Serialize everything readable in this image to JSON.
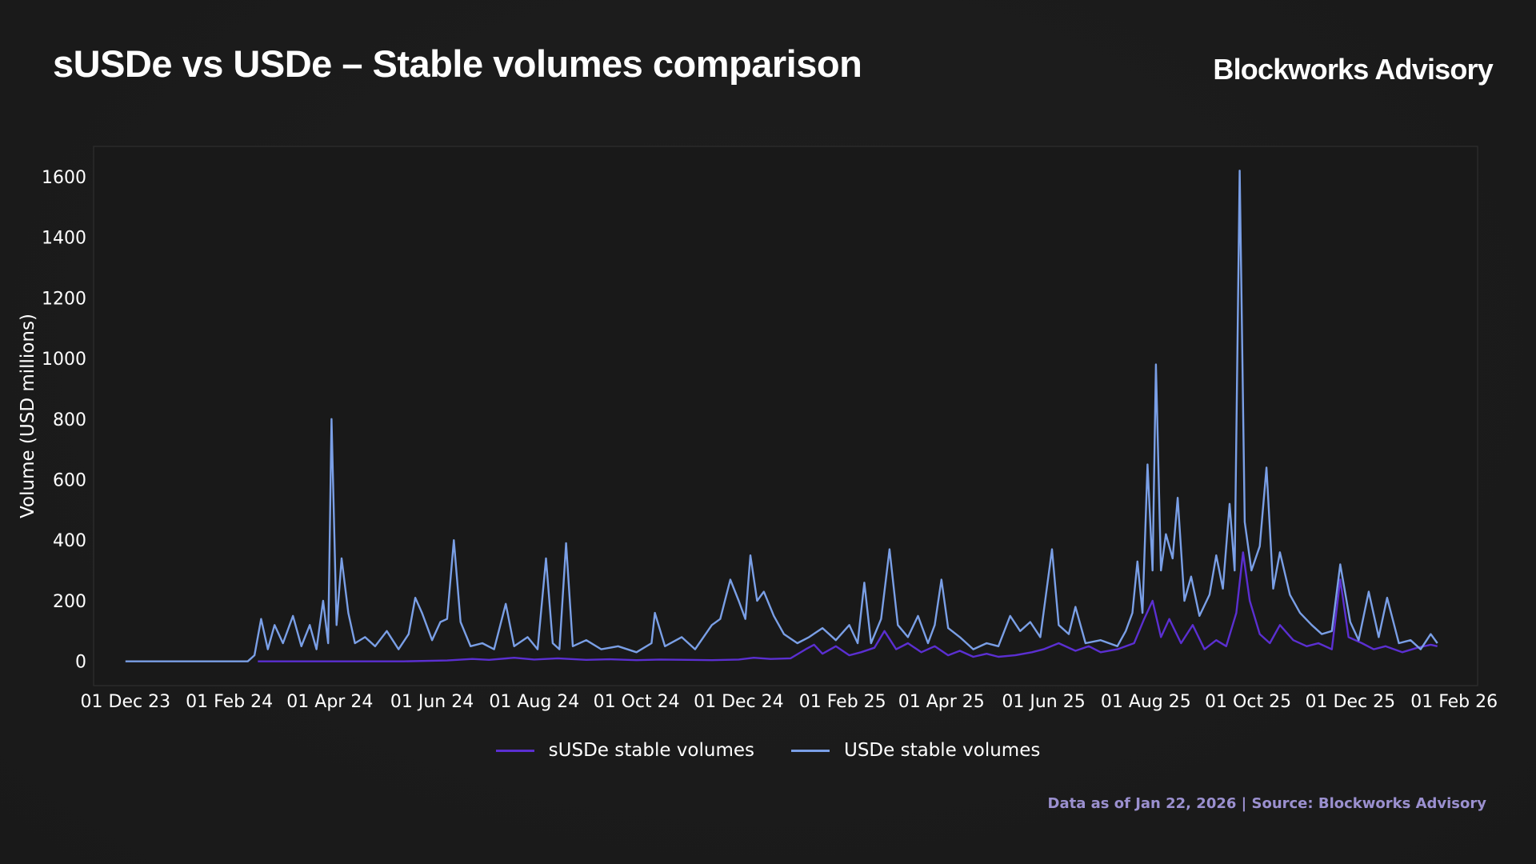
{
  "header": {
    "title": "sUSDe vs USDe – Stable volumes comparison",
    "brand": "Blockworks Advisory"
  },
  "footer": {
    "source_note": "Data as of Jan 22, 2026 | Source: Blockworks Advisory"
  },
  "colors": {
    "background": "#1b1b1b",
    "plot_background": "#191919",
    "susde": "#5b2fd1",
    "usde": "#7a9fe6",
    "source_note": "#9b90cf"
  },
  "chart_data": {
    "type": "line",
    "title": "sUSDe vs USDe – Stable volumes comparison",
    "xlabel": "",
    "ylabel": "Volume (USD millions)",
    "x_type": "date",
    "xlim": [
      "2023-11-12",
      "2026-02-15"
    ],
    "ylim": [
      -80,
      1700
    ],
    "x_ticks": [
      {
        "date": "2023-12-01",
        "label": "01 Dec 23"
      },
      {
        "date": "2024-02-01",
        "label": "01 Feb 24"
      },
      {
        "date": "2024-04-01",
        "label": "01 Apr 24"
      },
      {
        "date": "2024-06-01",
        "label": "01 Jun 24"
      },
      {
        "date": "2024-08-01",
        "label": "01 Aug 24"
      },
      {
        "date": "2024-10-01",
        "label": "01 Oct 24"
      },
      {
        "date": "2024-12-01",
        "label": "01 Dec 24"
      },
      {
        "date": "2025-02-01",
        "label": "01 Feb 25"
      },
      {
        "date": "2025-04-01",
        "label": "01 Apr 25"
      },
      {
        "date": "2025-06-01",
        "label": "01 Jun 25"
      },
      {
        "date": "2025-08-01",
        "label": "01 Aug 25"
      },
      {
        "date": "2025-10-01",
        "label": "01 Oct 25"
      },
      {
        "date": "2025-12-01",
        "label": "01 Dec 25"
      },
      {
        "date": "2026-02-01",
        "label": "01 Feb 26"
      }
    ],
    "y_ticks": [
      0,
      200,
      400,
      600,
      800,
      1000,
      1200,
      1400,
      1600
    ],
    "grid": false,
    "legend_position": "bottom-center",
    "series": [
      {
        "name": "sUSDe stable volumes",
        "color": "#5b2fd1",
        "points": [
          [
            "2024-02-18",
            0
          ],
          [
            "2024-03-15",
            0
          ],
          [
            "2024-04-15",
            0
          ],
          [
            "2024-05-15",
            0
          ],
          [
            "2024-06-10",
            3
          ],
          [
            "2024-06-25",
            8
          ],
          [
            "2024-07-05",
            5
          ],
          [
            "2024-07-20",
            12
          ],
          [
            "2024-08-01",
            6
          ],
          [
            "2024-08-15",
            10
          ],
          [
            "2024-09-01",
            5
          ],
          [
            "2024-09-15",
            7
          ],
          [
            "2024-10-01",
            4
          ],
          [
            "2024-10-15",
            6
          ],
          [
            "2024-11-01",
            5
          ],
          [
            "2024-11-15",
            4
          ],
          [
            "2024-12-01",
            6
          ],
          [
            "2024-12-10",
            12
          ],
          [
            "2024-12-20",
            8
          ],
          [
            "2025-01-01",
            10
          ],
          [
            "2025-01-10",
            40
          ],
          [
            "2025-01-15",
            55
          ],
          [
            "2025-01-20",
            25
          ],
          [
            "2025-01-28",
            50
          ],
          [
            "2025-02-05",
            20
          ],
          [
            "2025-02-12",
            30
          ],
          [
            "2025-02-20",
            45
          ],
          [
            "2025-02-26",
            100
          ],
          [
            "2025-03-05",
            40
          ],
          [
            "2025-03-12",
            60
          ],
          [
            "2025-03-20",
            30
          ],
          [
            "2025-03-28",
            50
          ],
          [
            "2025-04-05",
            20
          ],
          [
            "2025-04-12",
            35
          ],
          [
            "2025-04-20",
            15
          ],
          [
            "2025-04-28",
            25
          ],
          [
            "2025-05-05",
            15
          ],
          [
            "2025-05-15",
            20
          ],
          [
            "2025-05-25",
            30
          ],
          [
            "2025-06-01",
            40
          ],
          [
            "2025-06-10",
            60
          ],
          [
            "2025-06-20",
            35
          ],
          [
            "2025-06-28",
            50
          ],
          [
            "2025-07-05",
            30
          ],
          [
            "2025-07-15",
            40
          ],
          [
            "2025-07-25",
            60
          ],
          [
            "2025-07-31",
            140
          ],
          [
            "2025-08-05",
            200
          ],
          [
            "2025-08-10",
            80
          ],
          [
            "2025-08-15",
            140
          ],
          [
            "2025-08-22",
            60
          ],
          [
            "2025-08-29",
            120
          ],
          [
            "2025-09-05",
            40
          ],
          [
            "2025-09-12",
            70
          ],
          [
            "2025-09-18",
            50
          ],
          [
            "2025-09-24",
            160
          ],
          [
            "2025-09-28",
            360
          ],
          [
            "2025-10-02",
            200
          ],
          [
            "2025-10-08",
            90
          ],
          [
            "2025-10-14",
            60
          ],
          [
            "2025-10-20",
            120
          ],
          [
            "2025-10-28",
            70
          ],
          [
            "2025-11-05",
            50
          ],
          [
            "2025-11-12",
            60
          ],
          [
            "2025-11-20",
            40
          ],
          [
            "2025-11-25",
            270
          ],
          [
            "2025-11-30",
            80
          ],
          [
            "2025-12-08",
            60
          ],
          [
            "2025-12-15",
            40
          ],
          [
            "2025-12-22",
            50
          ],
          [
            "2026-01-01",
            30
          ],
          [
            "2026-01-10",
            45
          ],
          [
            "2026-01-18",
            55
          ],
          [
            "2026-01-22",
            50
          ]
        ]
      },
      {
        "name": "USDe stable volumes",
        "color": "#7a9fe6",
        "points": [
          [
            "2023-12-01",
            0
          ],
          [
            "2023-12-31",
            0
          ],
          [
            "2024-01-31",
            0
          ],
          [
            "2024-02-12",
            0
          ],
          [
            "2024-02-16",
            20
          ],
          [
            "2024-02-20",
            140
          ],
          [
            "2024-02-24",
            40
          ],
          [
            "2024-02-28",
            120
          ],
          [
            "2024-03-04",
            60
          ],
          [
            "2024-03-10",
            150
          ],
          [
            "2024-03-15",
            50
          ],
          [
            "2024-03-20",
            120
          ],
          [
            "2024-03-24",
            40
          ],
          [
            "2024-03-28",
            200
          ],
          [
            "2024-03-31",
            60
          ],
          [
            "2024-04-02",
            800
          ],
          [
            "2024-04-05",
            120
          ],
          [
            "2024-04-08",
            340
          ],
          [
            "2024-04-12",
            160
          ],
          [
            "2024-04-16",
            60
          ],
          [
            "2024-04-22",
            80
          ],
          [
            "2024-04-28",
            50
          ],
          [
            "2024-05-05",
            100
          ],
          [
            "2024-05-12",
            40
          ],
          [
            "2024-05-18",
            90
          ],
          [
            "2024-05-22",
            210
          ],
          [
            "2024-05-26",
            160
          ],
          [
            "2024-06-01",
            70
          ],
          [
            "2024-06-06",
            130
          ],
          [
            "2024-06-10",
            140
          ],
          [
            "2024-06-14",
            400
          ],
          [
            "2024-06-18",
            130
          ],
          [
            "2024-06-24",
            50
          ],
          [
            "2024-07-01",
            60
          ],
          [
            "2024-07-08",
            40
          ],
          [
            "2024-07-15",
            190
          ],
          [
            "2024-07-20",
            50
          ],
          [
            "2024-07-28",
            80
          ],
          [
            "2024-08-03",
            40
          ],
          [
            "2024-08-08",
            340
          ],
          [
            "2024-08-12",
            60
          ],
          [
            "2024-08-16",
            40
          ],
          [
            "2024-08-20",
            390
          ],
          [
            "2024-08-24",
            50
          ],
          [
            "2024-09-01",
            70
          ],
          [
            "2024-09-10",
            40
          ],
          [
            "2024-09-20",
            50
          ],
          [
            "2024-10-01",
            30
          ],
          [
            "2024-10-10",
            60
          ],
          [
            "2024-10-12",
            160
          ],
          [
            "2024-10-18",
            50
          ],
          [
            "2024-10-28",
            80
          ],
          [
            "2024-11-05",
            40
          ],
          [
            "2024-11-15",
            120
          ],
          [
            "2024-11-20",
            140
          ],
          [
            "2024-11-26",
            270
          ],
          [
            "2024-12-01",
            200
          ],
          [
            "2024-12-05",
            140
          ],
          [
            "2024-12-08",
            350
          ],
          [
            "2024-12-12",
            200
          ],
          [
            "2024-12-16",
            230
          ],
          [
            "2024-12-22",
            150
          ],
          [
            "2024-12-28",
            90
          ],
          [
            "2025-01-05",
            60
          ],
          [
            "2025-01-12",
            80
          ],
          [
            "2025-01-20",
            110
          ],
          [
            "2025-01-28",
            70
          ],
          [
            "2025-02-05",
            120
          ],
          [
            "2025-02-10",
            60
          ],
          [
            "2025-02-14",
            260
          ],
          [
            "2025-02-18",
            60
          ],
          [
            "2025-02-24",
            140
          ],
          [
            "2025-03-01",
            370
          ],
          [
            "2025-03-06",
            120
          ],
          [
            "2025-03-12",
            80
          ],
          [
            "2025-03-18",
            150
          ],
          [
            "2025-03-24",
            60
          ],
          [
            "2025-03-28",
            120
          ],
          [
            "2025-04-01",
            270
          ],
          [
            "2025-04-05",
            110
          ],
          [
            "2025-04-12",
            80
          ],
          [
            "2025-04-20",
            40
          ],
          [
            "2025-04-28",
            60
          ],
          [
            "2025-05-05",
            50
          ],
          [
            "2025-05-12",
            150
          ],
          [
            "2025-05-18",
            100
          ],
          [
            "2025-05-24",
            130
          ],
          [
            "2025-05-30",
            80
          ],
          [
            "2025-06-06",
            370
          ],
          [
            "2025-06-10",
            120
          ],
          [
            "2025-06-16",
            90
          ],
          [
            "2025-06-20",
            180
          ],
          [
            "2025-06-26",
            60
          ],
          [
            "2025-07-05",
            70
          ],
          [
            "2025-07-15",
            50
          ],
          [
            "2025-07-20",
            100
          ],
          [
            "2025-07-24",
            160
          ],
          [
            "2025-07-27",
            330
          ],
          [
            "2025-07-30",
            160
          ],
          [
            "2025-08-02",
            650
          ],
          [
            "2025-08-05",
            300
          ],
          [
            "2025-08-07",
            980
          ],
          [
            "2025-08-10",
            300
          ],
          [
            "2025-08-13",
            420
          ],
          [
            "2025-08-17",
            340
          ],
          [
            "2025-08-20",
            540
          ],
          [
            "2025-08-24",
            200
          ],
          [
            "2025-08-28",
            280
          ],
          [
            "2025-09-02",
            150
          ],
          [
            "2025-09-08",
            220
          ],
          [
            "2025-09-12",
            350
          ],
          [
            "2025-09-16",
            240
          ],
          [
            "2025-09-20",
            520
          ],
          [
            "2025-09-23",
            300
          ],
          [
            "2025-09-26",
            1620
          ],
          [
            "2025-09-29",
            460
          ],
          [
            "2025-10-03",
            300
          ],
          [
            "2025-10-08",
            380
          ],
          [
            "2025-10-12",
            640
          ],
          [
            "2025-10-16",
            240
          ],
          [
            "2025-10-20",
            360
          ],
          [
            "2025-10-26",
            220
          ],
          [
            "2025-11-01",
            160
          ],
          [
            "2025-11-08",
            120
          ],
          [
            "2025-11-14",
            90
          ],
          [
            "2025-11-20",
            100
          ],
          [
            "2025-11-25",
            320
          ],
          [
            "2025-12-01",
            130
          ],
          [
            "2025-12-06",
            70
          ],
          [
            "2025-12-12",
            230
          ],
          [
            "2025-12-18",
            80
          ],
          [
            "2025-12-23",
            210
          ],
          [
            "2025-12-30",
            60
          ],
          [
            "2026-01-06",
            70
          ],
          [
            "2026-01-12",
            40
          ],
          [
            "2026-01-18",
            90
          ],
          [
            "2026-01-22",
            60
          ]
        ]
      }
    ]
  }
}
